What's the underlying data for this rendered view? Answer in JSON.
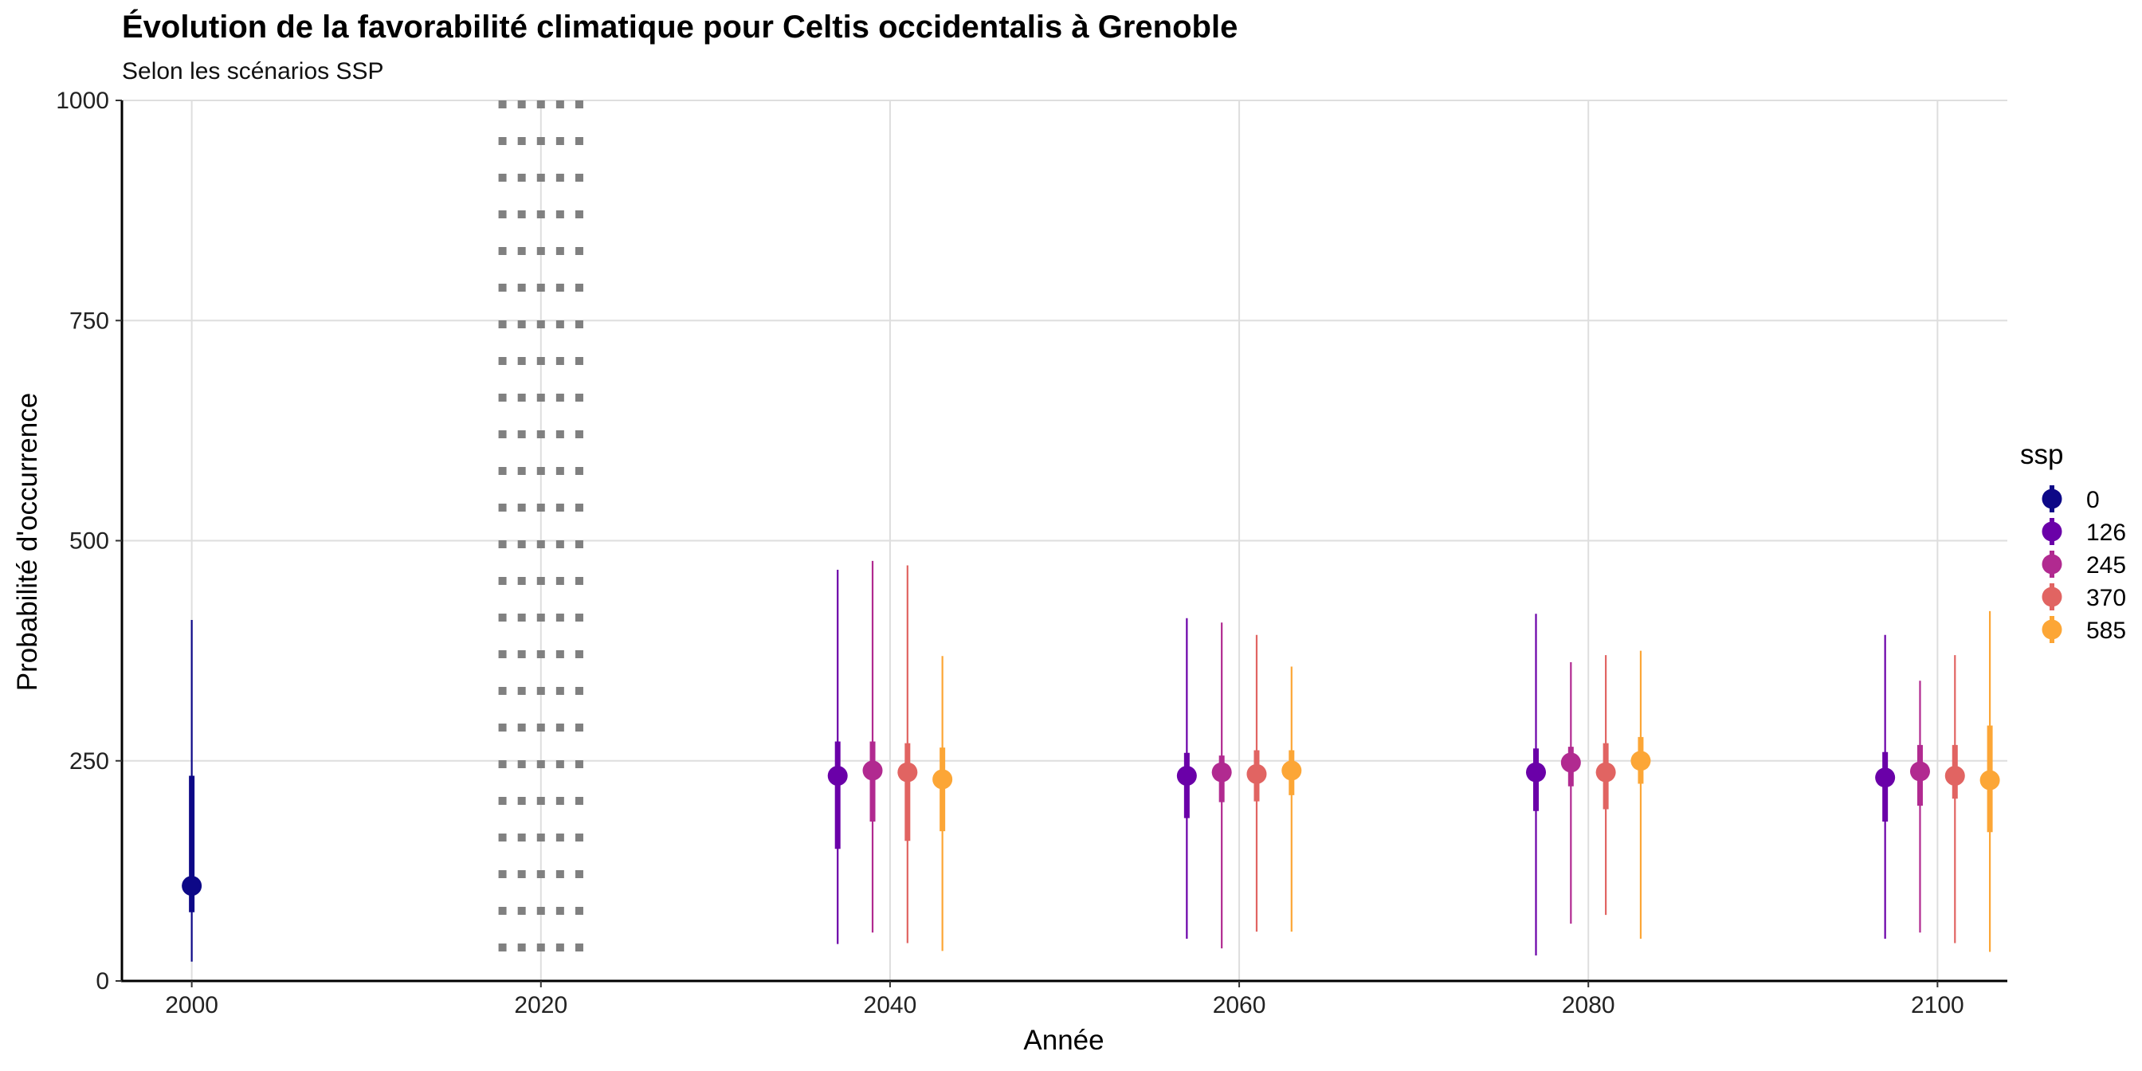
{
  "chart_data": {
    "type": "pointrange",
    "title": "Évolution de la favorabilité climatique pour Celtis occidentalis à Grenoble",
    "subtitle": "Selon les scénarios SSP",
    "xlabel": "Année",
    "ylabel": "Probabilité d'occurrence",
    "xlim": [
      1996,
      2104
    ],
    "ylim": [
      0,
      1000
    ],
    "x_ticks": [
      2000,
      2020,
      2040,
      2060,
      2080,
      2100
    ],
    "y_ticks": [
      0,
      250,
      500,
      750,
      1000
    ],
    "reference_band": {
      "from": 2017.8,
      "to": 2022.2,
      "style": "dotted",
      "color": "#808080"
    },
    "legend_title": "ssp",
    "series": [
      {
        "name": "0",
        "color": "#0D0887",
        "points": [
          {
            "x": 2000,
            "y": 108,
            "inner": [
              78,
              233
            ],
            "outer": [
              22,
              410
            ]
          }
        ]
      },
      {
        "name": "126",
        "color": "#6A00A8",
        "points": [
          {
            "x": 2037,
            "y": 233,
            "inner": [
              150,
              272
            ],
            "outer": [
              42,
              467
            ]
          },
          {
            "x": 2057,
            "y": 233,
            "inner": [
              185,
              259
            ],
            "outer": [
              48,
              412
            ]
          },
          {
            "x": 2077,
            "y": 237,
            "inner": [
              193,
              264
            ],
            "outer": [
              29,
              417
            ]
          },
          {
            "x": 2097,
            "y": 231,
            "inner": [
              181,
              260
            ],
            "outer": [
              48,
              393
            ]
          }
        ]
      },
      {
        "name": "245",
        "color": "#B12A90",
        "points": [
          {
            "x": 2039,
            "y": 239,
            "inner": [
              181,
              272
            ],
            "outer": [
              55,
              477
            ]
          },
          {
            "x": 2059,
            "y": 237,
            "inner": [
              203,
              256
            ],
            "outer": [
              37,
              407
            ]
          },
          {
            "x": 2079,
            "y": 248,
            "inner": [
              221,
              266
            ],
            "outer": [
              65,
              362
            ]
          },
          {
            "x": 2099,
            "y": 238,
            "inner": [
              199,
              268
            ],
            "outer": [
              55,
              341
            ]
          }
        ]
      },
      {
        "name": "370",
        "color": "#E16462",
        "points": [
          {
            "x": 2041,
            "y": 237,
            "inner": [
              159,
              270
            ],
            "outer": [
              43,
              472
            ]
          },
          {
            "x": 2061,
            "y": 235,
            "inner": [
              204,
              262
            ],
            "outer": [
              56,
              393
            ]
          },
          {
            "x": 2081,
            "y": 237,
            "inner": [
              195,
              270
            ],
            "outer": [
              75,
              370
            ]
          },
          {
            "x": 2101,
            "y": 233,
            "inner": [
              207,
              268
            ],
            "outer": [
              43,
              370
            ]
          }
        ]
      },
      {
        "name": "585",
        "color": "#FCA636",
        "points": [
          {
            "x": 2043,
            "y": 229,
            "inner": [
              170,
              265
            ],
            "outer": [
              34,
              369
            ]
          },
          {
            "x": 2063,
            "y": 239,
            "inner": [
              211,
              262
            ],
            "outer": [
              56,
              357
            ]
          },
          {
            "x": 2083,
            "y": 250,
            "inner": [
              224,
              277
            ],
            "outer": [
              48,
              375
            ]
          },
          {
            "x": 2103,
            "y": 228,
            "inner": [
              169,
              290
            ],
            "outer": [
              33,
              420
            ]
          }
        ]
      }
    ]
  }
}
